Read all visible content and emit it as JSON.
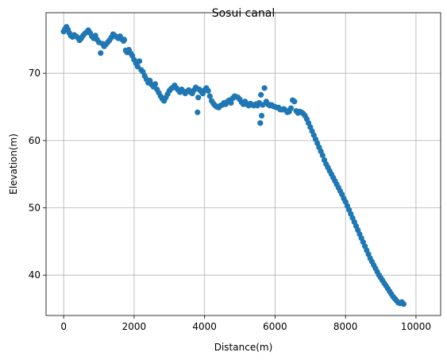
{
  "chart_data": {
    "type": "scatter",
    "title": "Sosui canal",
    "xlabel": "Distance(m)",
    "ylabel": "Elevation(m)",
    "xlim": [
      -500,
      10700
    ],
    "ylim": [
      34,
      79
    ],
    "xticks": [
      0,
      2000,
      4000,
      6000,
      8000,
      10000
    ],
    "yticks": [
      40,
      50,
      60,
      70
    ],
    "grid": true,
    "marker_color": "#1f77b4",
    "series": [
      {
        "points": [
          [
            0,
            76.2
          ],
          [
            40,
            76.6
          ],
          [
            80,
            76.9
          ],
          [
            120,
            76.5
          ],
          [
            160,
            76.0
          ],
          [
            200,
            75.6
          ],
          [
            250,
            75.4
          ],
          [
            300,
            75.7
          ],
          [
            350,
            75.5
          ],
          [
            400,
            75.3
          ],
          [
            450,
            74.9
          ],
          [
            500,
            75.2
          ],
          [
            550,
            75.6
          ],
          [
            600,
            75.9
          ],
          [
            650,
            76.1
          ],
          [
            700,
            76.4
          ],
          [
            750,
            76.0
          ],
          [
            800,
            75.5
          ],
          [
            850,
            75.2
          ],
          [
            900,
            75.6
          ],
          [
            950,
            75.0
          ],
          [
            1000,
            74.6
          ],
          [
            1050,
            73.0
          ],
          [
            1100,
            74.4
          ],
          [
            1150,
            74.0
          ],
          [
            1200,
            74.3
          ],
          [
            1250,
            74.6
          ],
          [
            1300,
            74.9
          ],
          [
            1350,
            75.3
          ],
          [
            1400,
            75.8
          ],
          [
            1450,
            75.6
          ],
          [
            1500,
            75.4
          ],
          [
            1550,
            75.2
          ],
          [
            1600,
            75.5
          ],
          [
            1650,
            75.1
          ],
          [
            1700,
            74.8
          ],
          [
            1720,
            75.0
          ],
          [
            1760,
            73.4
          ],
          [
            1800,
            73.1
          ],
          [
            1850,
            73.5
          ],
          [
            1900,
            73.0
          ],
          [
            1950,
            72.6
          ],
          [
            2000,
            72.0
          ],
          [
            2050,
            71.5
          ],
          [
            2100,
            71.0
          ],
          [
            2150,
            71.8
          ],
          [
            2200,
            70.5
          ],
          [
            2250,
            70.2
          ],
          [
            2300,
            69.6
          ],
          [
            2350,
            69.1
          ],
          [
            2400,
            68.6
          ],
          [
            2450,
            68.9
          ],
          [
            2500,
            68.3
          ],
          [
            2550,
            68.0
          ],
          [
            2600,
            68.4
          ],
          [
            2650,
            67.6
          ],
          [
            2700,
            67.1
          ],
          [
            2750,
            66.6
          ],
          [
            2800,
            66.2
          ],
          [
            2850,
            65.9
          ],
          [
            2900,
            66.4
          ],
          [
            2950,
            66.9
          ],
          [
            3000,
            67.4
          ],
          [
            3050,
            67.7
          ],
          [
            3100,
            67.9
          ],
          [
            3150,
            68.2
          ],
          [
            3200,
            67.8
          ],
          [
            3250,
            67.5
          ],
          [
            3300,
            67.2
          ],
          [
            3350,
            67.6
          ],
          [
            3400,
            67.3
          ],
          [
            3450,
            67.0
          ],
          [
            3500,
            67.3
          ],
          [
            3550,
            67.5
          ],
          [
            3600,
            67.2
          ],
          [
            3650,
            67.0
          ],
          [
            3700,
            67.5
          ],
          [
            3750,
            67.9
          ],
          [
            3800,
            64.2
          ],
          [
            3820,
            66.4
          ],
          [
            3850,
            67.6
          ],
          [
            3900,
            67.3
          ],
          [
            3950,
            67.0
          ],
          [
            4000,
            67.5
          ],
          [
            4050,
            67.8
          ],
          [
            4100,
            67.4
          ],
          [
            4150,
            66.6
          ],
          [
            4200,
            65.9
          ],
          [
            4250,
            65.5
          ],
          [
            4300,
            65.2
          ],
          [
            4350,
            65.0
          ],
          [
            4400,
            64.9
          ],
          [
            4450,
            65.2
          ],
          [
            4500,
            65.3
          ],
          [
            4550,
            65.6
          ],
          [
            4600,
            65.4
          ],
          [
            4650,
            65.8
          ],
          [
            4700,
            66.0
          ],
          [
            4750,
            65.6
          ],
          [
            4800,
            66.3
          ],
          [
            4850,
            66.6
          ],
          [
            4900,
            66.5
          ],
          [
            4950,
            66.4
          ],
          [
            5000,
            66.1
          ],
          [
            5050,
            65.7
          ],
          [
            5100,
            65.4
          ],
          [
            5150,
            65.8
          ],
          [
            5200,
            65.4
          ],
          [
            5250,
            65.2
          ],
          [
            5300,
            65.5
          ],
          [
            5350,
            65.3
          ],
          [
            5400,
            65.2
          ],
          [
            5450,
            65.4
          ],
          [
            5500,
            65.2
          ],
          [
            5550,
            65.6
          ],
          [
            5580,
            62.6
          ],
          [
            5600,
            66.8
          ],
          [
            5620,
            63.7
          ],
          [
            5650,
            65.3
          ],
          [
            5700,
            67.8
          ],
          [
            5750,
            65.8
          ],
          [
            5800,
            65.4
          ],
          [
            5850,
            65.2
          ],
          [
            5900,
            65.3
          ],
          [
            5950,
            65.1
          ],
          [
            6000,
            65.0
          ],
          [
            6050,
            64.9
          ],
          [
            6100,
            64.9
          ],
          [
            6150,
            64.6
          ],
          [
            6200,
            64.6
          ],
          [
            6250,
            64.7
          ],
          [
            6300,
            64.5
          ],
          [
            6350,
            64.2
          ],
          [
            6400,
            64.3
          ],
          [
            6450,
            64.8
          ],
          [
            6500,
            66.0
          ],
          [
            6550,
            65.8
          ],
          [
            6600,
            64.4
          ],
          [
            6650,
            64.1
          ],
          [
            6700,
            64.3
          ],
          [
            6750,
            64.2
          ],
          [
            6800,
            64.0
          ],
          [
            6850,
            63.7
          ],
          [
            6900,
            63.2
          ],
          [
            6950,
            62.6
          ],
          [
            7000,
            62.0
          ],
          [
            7050,
            61.4
          ],
          [
            7100,
            60.8
          ],
          [
            7150,
            60.2
          ],
          [
            7200,
            59.6
          ],
          [
            7250,
            59.0
          ],
          [
            7300,
            58.4
          ],
          [
            7350,
            57.8
          ],
          [
            7400,
            57.1
          ],
          [
            7450,
            56.5
          ],
          [
            7500,
            56.0
          ],
          [
            7550,
            55.5
          ],
          [
            7600,
            55.0
          ],
          [
            7650,
            54.5
          ],
          [
            7700,
            54.0
          ],
          [
            7750,
            53.5
          ],
          [
            7800,
            53.0
          ],
          [
            7850,
            52.5
          ],
          [
            7900,
            52.0
          ],
          [
            7950,
            51.4
          ],
          [
            8000,
            50.9
          ],
          [
            8050,
            50.3
          ],
          [
            8100,
            49.7
          ],
          [
            8150,
            49.1
          ],
          [
            8200,
            48.5
          ],
          [
            8250,
            47.9
          ],
          [
            8300,
            47.3
          ],
          [
            8350,
            46.7
          ],
          [
            8400,
            46.1
          ],
          [
            8450,
            45.5
          ],
          [
            8500,
            44.9
          ],
          [
            8550,
            44.3
          ],
          [
            8600,
            43.7
          ],
          [
            8650,
            43.1
          ],
          [
            8700,
            42.5
          ],
          [
            8750,
            42.0
          ],
          [
            8800,
            41.5
          ],
          [
            8850,
            41.0
          ],
          [
            8900,
            40.5
          ],
          [
            8950,
            40.0
          ],
          [
            9000,
            39.6
          ],
          [
            9050,
            39.2
          ],
          [
            9100,
            38.8
          ],
          [
            9150,
            38.4
          ],
          [
            9200,
            38.0
          ],
          [
            9250,
            37.6
          ],
          [
            9300,
            37.2
          ],
          [
            9350,
            36.8
          ],
          [
            9400,
            36.5
          ],
          [
            9450,
            36.2
          ],
          [
            9500,
            35.9
          ],
          [
            9550,
            35.8
          ],
          [
            9600,
            36.0
          ],
          [
            9650,
            35.7
          ]
        ]
      }
    ]
  }
}
